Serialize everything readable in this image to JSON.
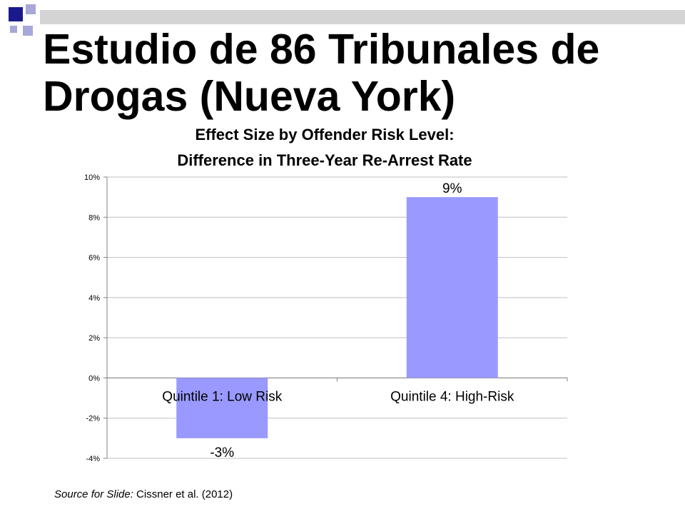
{
  "slide": {
    "title": "Estudio de 86 Tribunales de Drogas (Nueva York)",
    "source_prefix": "Source for Slide:",
    "source_text": " Cissner et al. (2012)",
    "colors": {
      "decor_dark": "#1a1a8c",
      "decor_light": "#a7a7d9",
      "decor_bar": "#d4d4d4"
    }
  },
  "chart_data": {
    "type": "bar",
    "title_lines": [
      "Effect Size by Offender Risk Level:",
      "Difference in Three-Year Re-Arrest Rate"
    ],
    "categories": [
      "Quintile 1: Low Risk",
      "Quintile 4: High-Risk"
    ],
    "values": [
      -3,
      9
    ],
    "data_labels": [
      "-3%",
      "9%"
    ],
    "ylim": [
      -4,
      10
    ],
    "yticks": [
      -4,
      -2,
      0,
      2,
      4,
      6,
      8,
      10
    ],
    "ytick_labels": [
      "-4%",
      "-2%",
      "0%",
      "2%",
      "4%",
      "6%",
      "8%",
      "10%"
    ],
    "xlabel": "",
    "ylabel": "",
    "grid": true,
    "legend": "none",
    "bar_color": "#9999ff",
    "grid_color": "#bfbfbf",
    "axis_color": "#808080"
  }
}
